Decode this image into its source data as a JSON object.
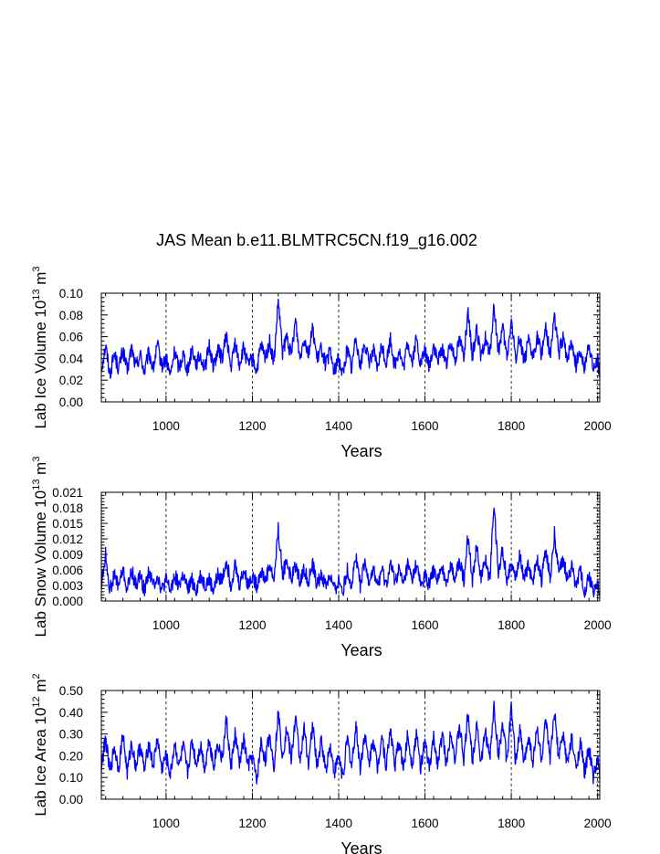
{
  "figure": {
    "title": "JAS Mean b.e11.BLMTRC5CN.f19_g16.002",
    "line_color": "#0000ff",
    "grid_color": "#000000"
  },
  "chart_data": [
    {
      "type": "line",
      "title": "",
      "xlabel": "Years",
      "ylabel": "Lab Ice Volume 10",
      "ylabel_exp": "13",
      "ylabel_unit": "m",
      "ylabel_unit_exp": "3",
      "xlim": [
        850,
        2005
      ],
      "ylim": [
        0,
        0.1
      ],
      "xticks": [
        1000,
        1200,
        1400,
        1600,
        1800,
        2000
      ],
      "xtick_labels": [
        "1000",
        "1200",
        "1400",
        "1600",
        "1800",
        "2000"
      ],
      "yticks": [
        0,
        0.02,
        0.04,
        0.06,
        0.08,
        0.1
      ],
      "ytick_labels": [
        "0.00",
        "0.02",
        "0.04",
        "0.06",
        "0.08",
        "0.10"
      ],
      "series": [
        {
          "name": "Lab Ice Volume",
          "x": [
            850,
            860,
            870,
            880,
            890,
            900,
            910,
            920,
            930,
            940,
            950,
            960,
            970,
            980,
            990,
            1000,
            1010,
            1020,
            1030,
            1040,
            1050,
            1060,
            1070,
            1080,
            1090,
            1100,
            1110,
            1120,
            1130,
            1140,
            1150,
            1160,
            1170,
            1180,
            1190,
            1200,
            1210,
            1220,
            1230,
            1240,
            1250,
            1260,
            1270,
            1280,
            1290,
            1300,
            1310,
            1320,
            1330,
            1340,
            1350,
            1360,
            1370,
            1380,
            1390,
            1400,
            1410,
            1420,
            1430,
            1440,
            1450,
            1460,
            1470,
            1480,
            1490,
            1500,
            1510,
            1520,
            1530,
            1540,
            1550,
            1560,
            1570,
            1580,
            1590,
            1600,
            1610,
            1620,
            1630,
            1640,
            1650,
            1660,
            1670,
            1680,
            1690,
            1700,
            1710,
            1720,
            1730,
            1740,
            1750,
            1760,
            1770,
            1780,
            1790,
            1800,
            1810,
            1820,
            1830,
            1840,
            1850,
            1860,
            1870,
            1880,
            1890,
            1900,
            1910,
            1920,
            1930,
            1940,
            1950,
            1960,
            1970,
            1980,
            1990,
            2000,
            2005
          ],
          "values": [
            0.03,
            0.052,
            0.025,
            0.045,
            0.03,
            0.048,
            0.028,
            0.05,
            0.032,
            0.044,
            0.027,
            0.046,
            0.03,
            0.052,
            0.033,
            0.04,
            0.024,
            0.047,
            0.031,
            0.045,
            0.028,
            0.05,
            0.035,
            0.043,
            0.03,
            0.052,
            0.032,
            0.048,
            0.04,
            0.062,
            0.03,
            0.055,
            0.034,
            0.05,
            0.033,
            0.04,
            0.028,
            0.052,
            0.04,
            0.055,
            0.035,
            0.093,
            0.045,
            0.06,
            0.042,
            0.076,
            0.04,
            0.06,
            0.045,
            0.068,
            0.038,
            0.05,
            0.034,
            0.046,
            0.028,
            0.04,
            0.025,
            0.05,
            0.03,
            0.062,
            0.032,
            0.055,
            0.036,
            0.048,
            0.03,
            0.052,
            0.035,
            0.058,
            0.033,
            0.048,
            0.03,
            0.055,
            0.036,
            0.058,
            0.034,
            0.047,
            0.032,
            0.052,
            0.036,
            0.05,
            0.035,
            0.055,
            0.04,
            0.058,
            0.044,
            0.08,
            0.04,
            0.07,
            0.038,
            0.06,
            0.042,
            0.088,
            0.045,
            0.068,
            0.04,
            0.075,
            0.04,
            0.06,
            0.038,
            0.055,
            0.04,
            0.06,
            0.044,
            0.07,
            0.042,
            0.08,
            0.045,
            0.058,
            0.04,
            0.055,
            0.034,
            0.048,
            0.03,
            0.055,
            0.028,
            0.04,
            0.022
          ]
        }
      ]
    },
    {
      "type": "line",
      "title": "",
      "xlabel": "Years",
      "ylabel": "Lab Snow Volume 10",
      "ylabel_exp": "13",
      "ylabel_unit": "m",
      "ylabel_unit_exp": "3",
      "xlim": [
        850,
        2005
      ],
      "ylim": [
        0,
        0.021
      ],
      "xticks": [
        1000,
        1200,
        1400,
        1600,
        1800,
        2000
      ],
      "xtick_labels": [
        "1000",
        "1200",
        "1400",
        "1600",
        "1800",
        "2000"
      ],
      "yticks": [
        0,
        0.003,
        0.006,
        0.009,
        0.012,
        0.015,
        0.018,
        0.021
      ],
      "ytick_labels": [
        "0.000",
        "0.003",
        "0.006",
        "0.009",
        "0.012",
        "0.015",
        "0.018",
        "0.021"
      ],
      "series": [
        {
          "name": "Lab Snow Volume",
          "x": [
            850,
            860,
            870,
            880,
            890,
            900,
            910,
            920,
            930,
            940,
            950,
            960,
            970,
            980,
            990,
            1000,
            1010,
            1020,
            1030,
            1040,
            1050,
            1060,
            1070,
            1080,
            1090,
            1100,
            1110,
            1120,
            1130,
            1140,
            1150,
            1160,
            1170,
            1180,
            1190,
            1200,
            1210,
            1220,
            1230,
            1240,
            1250,
            1260,
            1270,
            1280,
            1290,
            1300,
            1310,
            1320,
            1330,
            1340,
            1350,
            1360,
            1370,
            1380,
            1390,
            1400,
            1410,
            1420,
            1430,
            1440,
            1450,
            1460,
            1470,
            1480,
            1490,
            1500,
            1510,
            1520,
            1530,
            1540,
            1550,
            1560,
            1570,
            1580,
            1590,
            1600,
            1610,
            1620,
            1630,
            1640,
            1650,
            1660,
            1670,
            1680,
            1690,
            1700,
            1710,
            1720,
            1730,
            1740,
            1750,
            1760,
            1770,
            1780,
            1790,
            1800,
            1810,
            1820,
            1830,
            1840,
            1850,
            1860,
            1870,
            1880,
            1890,
            1900,
            1910,
            1920,
            1930,
            1940,
            1950,
            1960,
            1970,
            1980,
            1990,
            2000,
            2005
          ],
          "values": [
            0.003,
            0.009,
            0.002,
            0.005,
            0.003,
            0.006,
            0.002,
            0.006,
            0.003,
            0.005,
            0.002,
            0.006,
            0.003,
            0.005,
            0.002,
            0.004,
            0.002,
            0.005,
            0.003,
            0.005,
            0.002,
            0.004,
            0.002,
            0.005,
            0.003,
            0.004,
            0.002,
            0.005,
            0.004,
            0.008,
            0.003,
            0.007,
            0.003,
            0.006,
            0.003,
            0.005,
            0.003,
            0.006,
            0.004,
            0.007,
            0.004,
            0.014,
            0.005,
            0.008,
            0.004,
            0.007,
            0.004,
            0.006,
            0.004,
            0.007,
            0.003,
            0.005,
            0.003,
            0.005,
            0.002,
            0.004,
            0.002,
            0.006,
            0.003,
            0.009,
            0.003,
            0.007,
            0.004,
            0.006,
            0.003,
            0.006,
            0.003,
            0.007,
            0.004,
            0.006,
            0.003,
            0.007,
            0.004,
            0.007,
            0.003,
            0.005,
            0.003,
            0.006,
            0.004,
            0.006,
            0.004,
            0.007,
            0.004,
            0.008,
            0.004,
            0.013,
            0.004,
            0.011,
            0.004,
            0.008,
            0.004,
            0.019,
            0.005,
            0.01,
            0.004,
            0.008,
            0.004,
            0.009,
            0.004,
            0.007,
            0.004,
            0.008,
            0.004,
            0.01,
            0.004,
            0.013,
            0.005,
            0.008,
            0.004,
            0.007,
            0.003,
            0.006,
            0.002,
            0.005,
            0.002,
            0.003,
            0.001
          ]
        }
      ]
    },
    {
      "type": "line",
      "title": "",
      "xlabel": "Years",
      "ylabel": "Lab Ice Area 10",
      "ylabel_exp": "12",
      "ylabel_unit": "m",
      "ylabel_unit_exp": "2",
      "xlim": [
        850,
        2005
      ],
      "ylim": [
        0,
        0.5
      ],
      "xticks": [
        1000,
        1200,
        1400,
        1600,
        1800,
        2000
      ],
      "xtick_labels": [
        "1000",
        "1200",
        "1400",
        "1600",
        "1800",
        "2000"
      ],
      "yticks": [
        0,
        0.1,
        0.2,
        0.3,
        0.4,
        0.5
      ],
      "ytick_labels": [
        "0.00",
        "0.10",
        "0.20",
        "0.30",
        "0.40",
        "0.50"
      ],
      "series": [
        {
          "name": "Lab Ice Area",
          "x": [
            850,
            860,
            870,
            880,
            890,
            900,
            910,
            920,
            930,
            940,
            950,
            960,
            970,
            980,
            990,
            1000,
            1010,
            1020,
            1030,
            1040,
            1050,
            1060,
            1070,
            1080,
            1090,
            1100,
            1110,
            1120,
            1130,
            1140,
            1150,
            1160,
            1170,
            1180,
            1190,
            1200,
            1210,
            1220,
            1230,
            1240,
            1250,
            1260,
            1270,
            1280,
            1290,
            1300,
            1310,
            1320,
            1330,
            1340,
            1350,
            1360,
            1370,
            1380,
            1390,
            1400,
            1410,
            1420,
            1430,
            1440,
            1450,
            1460,
            1470,
            1480,
            1490,
            1500,
            1510,
            1520,
            1530,
            1540,
            1550,
            1560,
            1570,
            1580,
            1590,
            1600,
            1610,
            1620,
            1630,
            1640,
            1650,
            1660,
            1670,
            1680,
            1690,
            1700,
            1710,
            1720,
            1730,
            1740,
            1750,
            1760,
            1770,
            1780,
            1790,
            1800,
            1810,
            1820,
            1830,
            1840,
            1850,
            1860,
            1870,
            1880,
            1890,
            1900,
            1910,
            1920,
            1930,
            1940,
            1950,
            1960,
            1970,
            1980,
            1990,
            2000,
            2005
          ],
          "values": [
            0.15,
            0.28,
            0.12,
            0.24,
            0.14,
            0.3,
            0.12,
            0.26,
            0.15,
            0.25,
            0.13,
            0.26,
            0.15,
            0.28,
            0.14,
            0.2,
            0.11,
            0.26,
            0.15,
            0.24,
            0.12,
            0.27,
            0.16,
            0.25,
            0.14,
            0.28,
            0.15,
            0.26,
            0.18,
            0.37,
            0.14,
            0.3,
            0.16,
            0.27,
            0.15,
            0.2,
            0.08,
            0.26,
            0.18,
            0.3,
            0.15,
            0.4,
            0.2,
            0.33,
            0.18,
            0.38,
            0.18,
            0.32,
            0.17,
            0.34,
            0.15,
            0.27,
            0.13,
            0.25,
            0.12,
            0.2,
            0.1,
            0.28,
            0.15,
            0.34,
            0.14,
            0.3,
            0.16,
            0.28,
            0.14,
            0.3,
            0.15,
            0.33,
            0.15,
            0.27,
            0.14,
            0.3,
            0.16,
            0.3,
            0.15,
            0.26,
            0.14,
            0.28,
            0.16,
            0.3,
            0.16,
            0.32,
            0.18,
            0.34,
            0.18,
            0.4,
            0.17,
            0.36,
            0.16,
            0.32,
            0.18,
            0.43,
            0.2,
            0.35,
            0.17,
            0.42,
            0.17,
            0.32,
            0.16,
            0.3,
            0.17,
            0.33,
            0.18,
            0.36,
            0.18,
            0.4,
            0.19,
            0.3,
            0.16,
            0.28,
            0.14,
            0.26,
            0.12,
            0.24,
            0.1,
            0.18,
            0.09
          ]
        }
      ]
    }
  ]
}
